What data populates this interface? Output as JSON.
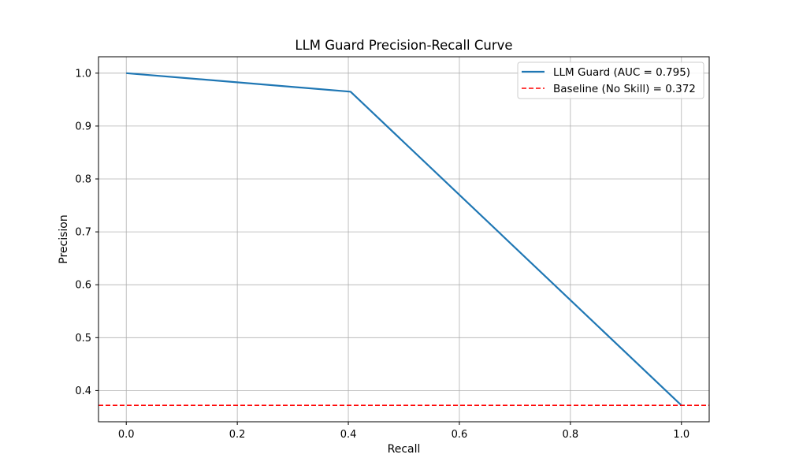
{
  "chart_data": {
    "type": "line",
    "title": "LLM Guard Precision-Recall Curve",
    "xlabel": "Recall",
    "ylabel": "Precision",
    "xlim": [
      -0.05,
      1.05
    ],
    "ylim": [
      0.341,
      1.031
    ],
    "xticks": [
      0.0,
      0.2,
      0.4,
      0.6,
      0.8,
      1.0
    ],
    "xtick_labels": [
      "0.0",
      "0.2",
      "0.4",
      "0.6",
      "0.8",
      "1.0"
    ],
    "yticks": [
      0.4,
      0.5,
      0.6,
      0.7,
      0.8,
      0.9,
      1.0
    ],
    "ytick_labels": [
      "0.4",
      "0.5",
      "0.6",
      "0.7",
      "0.8",
      "0.9",
      "1.0"
    ],
    "grid": true,
    "legend_position": "top-right",
    "series": [
      {
        "name": "LLM Guard (AUC = 0.795)",
        "color": "#1f77b4",
        "style": "solid",
        "x": [
          0.0,
          0.404,
          1.0
        ],
        "y": [
          1.0,
          0.965,
          0.372
        ]
      },
      {
        "name": "Baseline (No Skill) = 0.372",
        "color": "#ff0000",
        "style": "dashed",
        "type": "hline",
        "y": 0.372
      }
    ]
  }
}
